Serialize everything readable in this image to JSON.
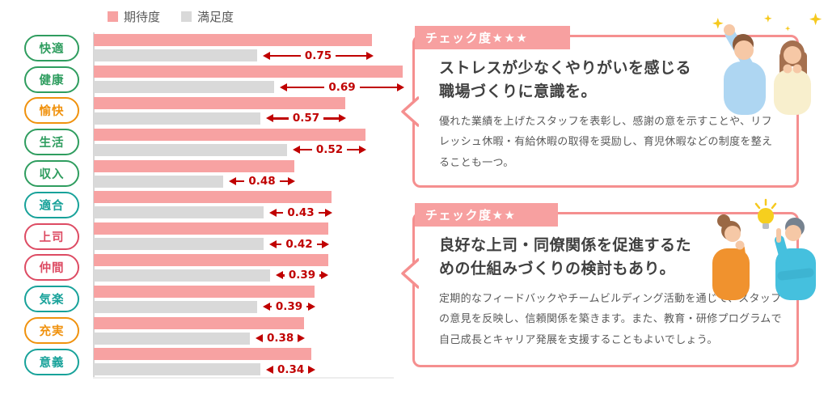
{
  "chart_data": {
    "type": "bar",
    "orientation": "horizontal",
    "title": "",
    "legend_position": "top",
    "grid": false,
    "xlim": [
      0,
      1
    ],
    "legend": [
      {
        "label": "期待度",
        "color": "#f7a2a2"
      },
      {
        "label": "満足度",
        "color": "#d9d9d9"
      }
    ],
    "categories": [
      "快適",
      "健康",
      "愉快",
      "生活",
      "収入",
      "適合",
      "上司",
      "仲間",
      "気楽",
      "充実",
      "意義"
    ],
    "category_colors": [
      "#2f9d5f",
      "#2f9d5f",
      "#f0920e",
      "#2f9d5f",
      "#2f9d5f",
      "#18a29a",
      "#dd4b63",
      "#dd4b63",
      "#18a29a",
      "#f0920e",
      "#18a29a"
    ],
    "series": [
      {
        "name": "期待度",
        "values": [
          0.82,
          0.91,
          0.74,
          0.8,
          0.59,
          0.7,
          0.69,
          0.69,
          0.65,
          0.62,
          0.64
        ]
      },
      {
        "name": "満足度",
        "values": [
          0.48,
          0.53,
          0.49,
          0.57,
          0.38,
          0.5,
          0.5,
          0.52,
          0.48,
          0.46,
          0.49
        ]
      }
    ],
    "gap_labels": [
      "0.75",
      "0.69",
      "0.57",
      "0.52",
      "0.48",
      "0.43",
      "0.42",
      "0.39",
      "0.39",
      "0.38",
      "0.34"
    ],
    "gap_color": "#c00000"
  },
  "callouts": [
    {
      "badge": "チェック度★★★",
      "title": "ストレスが少なくやりがいを感じる職場づくりに意識を。",
      "body": "優れた業績を上げたスタッフを表彰し、感謝の意を示すことや、リフレッシュ休暇・有給休暇の取得を奨励し、育児休暇などの制度を整えることも一つ。",
      "illustration": "two-people-celebrating-icon",
      "accent_color": "#f58f8f"
    },
    {
      "badge": "チェック度★★",
      "title": "良好な上司・同僚関係を促進するための仕組みづくりの検討もあり。",
      "body": "定期的なフィードバックやチームビルディング活動を通じて、スタッフの意見を反映し、信頼関係を築きます。また、教育・研修プログラムで自己成長とキャリア発展を支援することもよいでしょう。",
      "illustration": "thinking-and-pointing-people-icon",
      "accent_color": "#f58f8f"
    }
  ]
}
